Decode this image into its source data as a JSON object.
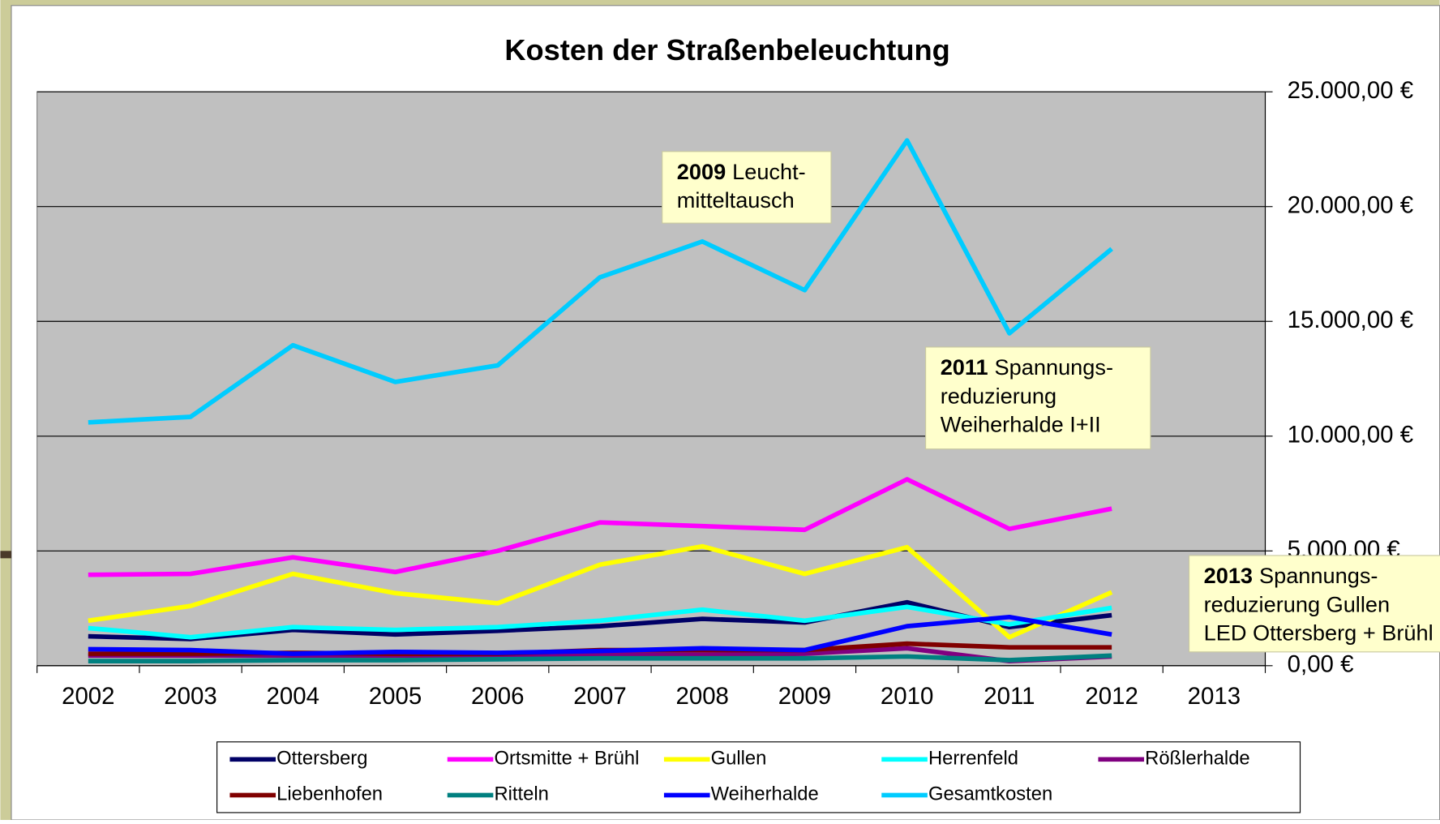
{
  "chart_data": {
    "type": "line",
    "title": "Kosten der Straßenbeleuchtung",
    "categories": [
      "2002",
      "2003",
      "2004",
      "2005",
      "2006",
      "2007",
      "2008",
      "2009",
      "2010",
      "2011",
      "2012",
      "2013"
    ],
    "series": [
      {
        "name": "Ottersberg",
        "color": "#000066",
        "values": [
          1280,
          1160,
          1560,
          1360,
          1520,
          1720,
          2040,
          1880,
          2760,
          1680,
          2200,
          null
        ]
      },
      {
        "name": "Ortsmitte + Brühl",
        "color": "#ff00ff",
        "values": [
          3960,
          4000,
          4720,
          4080,
          5000,
          6240,
          6080,
          5920,
          8120,
          5960,
          6840,
          null
        ]
      },
      {
        "name": "Gullen",
        "color": "#ffff00",
        "values": [
          1960,
          2600,
          4000,
          3160,
          2720,
          4400,
          5200,
          4000,
          5160,
          1240,
          3200,
          null
        ]
      },
      {
        "name": "Herrenfeld",
        "color": "#00ffff",
        "values": [
          1640,
          1240,
          1680,
          1560,
          1680,
          1960,
          2440,
          1960,
          2560,
          1800,
          2520,
          null
        ]
      },
      {
        "name": "Rößlerhalde",
        "color": "#800080",
        "values": [
          440,
          440,
          440,
          440,
          440,
          480,
          480,
          520,
          760,
          200,
          400,
          null
        ]
      },
      {
        "name": "Liebenhofen",
        "color": "#800000",
        "values": [
          520,
          520,
          560,
          520,
          520,
          680,
          680,
          680,
          960,
          800,
          800,
          null
        ]
      },
      {
        "name": "Ritteln",
        "color": "#008080",
        "values": [
          200,
          200,
          240,
          240,
          280,
          320,
          320,
          320,
          400,
          240,
          440,
          null
        ]
      },
      {
        "name": "Weiherhalde",
        "color": "#0000ff",
        "values": [
          720,
          680,
          520,
          600,
          560,
          640,
          760,
          680,
          1720,
          2120,
          1360,
          null
        ]
      },
      {
        "name": "Gesamtkosten",
        "color": "#00ccff",
        "values": [
          10600,
          10840,
          13960,
          12360,
          13080,
          16920,
          18480,
          16360,
          22880,
          14480,
          18160,
          null
        ]
      }
    ],
    "ylim": [
      0,
      25000
    ],
    "yticks": [
      {
        "value": 0,
        "label": "0,00 €"
      },
      {
        "value": 5000,
        "label": "5.000,00 €"
      },
      {
        "value": 10000,
        "label": "10.000,00 €"
      },
      {
        "value": 15000,
        "label": "15.000,00 €"
      },
      {
        "value": 20000,
        "label": "20.000,00 €"
      },
      {
        "value": 25000,
        "label": "25.000,00 €"
      }
    ],
    "grid": true,
    "legend": "bottom",
    "annotations": [
      {
        "bold": "2009",
        "lines": [
          "Leucht-",
          "mitteltausch"
        ]
      },
      {
        "bold": "2011",
        "lines": [
          "Spannungs-",
          "reduzierung",
          "Weiherhalde I+II"
        ]
      },
      {
        "bold": "2013",
        "lines": [
          "Spannungs-",
          "reduzierung Gullen",
          "LED Ottersberg + Brühl"
        ]
      }
    ]
  }
}
